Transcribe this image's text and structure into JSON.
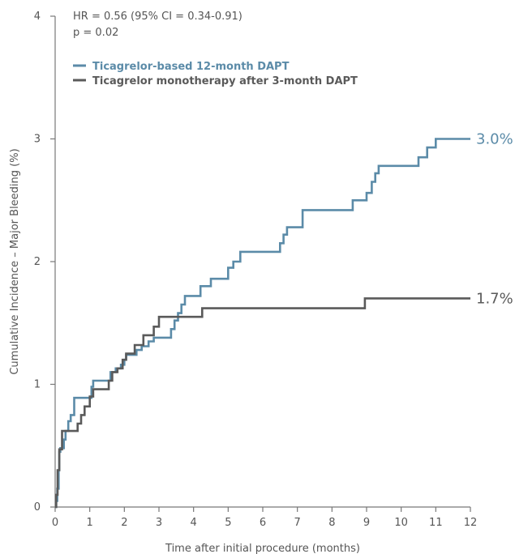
{
  "chart_data": {
    "type": "line",
    "step": true,
    "title": "",
    "xlabel": "Time after initial procedure (months)",
    "ylabel": "Cumulative Incidence – Major Bleeding (%)",
    "xlim": [
      0,
      12
    ],
    "ylim": [
      0,
      4
    ],
    "x_ticks": [
      0,
      1,
      2,
      3,
      4,
      5,
      6,
      7,
      8,
      9,
      10,
      11,
      12
    ],
    "y_ticks": [
      0,
      1,
      2,
      3,
      4
    ],
    "grid": false,
    "legend_position": "top-left",
    "annotations": {
      "hr": "HR = 0.56 (95% CI = 0.34-0.91)",
      "p": "p = 0.02"
    },
    "series": [
      {
        "name": "Ticagrelor-based 12-month DAPT",
        "color": "#5b8ba8",
        "end_label": "3.0%",
        "end_value": 3.0,
        "x": [
          0,
          0.03,
          0.06,
          0.1,
          0.12,
          0.15,
          0.25,
          0.3,
          0.38,
          0.45,
          0.55,
          0.9,
          1.05,
          1.1,
          1.6,
          1.75,
          1.9,
          2.0,
          2.05,
          2.2,
          2.35,
          2.5,
          2.7,
          2.85,
          3.2,
          3.35,
          3.45,
          3.55,
          3.65,
          3.75,
          4.2,
          4.5,
          5.0,
          5.15,
          5.35,
          6.5,
          6.6,
          6.7,
          6.9,
          7.15,
          8.6,
          9.0,
          9.15,
          9.25,
          9.35,
          10.5,
          10.75,
          11.0,
          12.0
        ],
        "y": [
          0,
          0.05,
          0.15,
          0.3,
          0.45,
          0.48,
          0.55,
          0.62,
          0.7,
          0.75,
          0.89,
          0.89,
          0.98,
          1.03,
          1.1,
          1.13,
          1.16,
          1.2,
          1.24,
          1.24,
          1.28,
          1.31,
          1.35,
          1.38,
          1.38,
          1.45,
          1.52,
          1.58,
          1.65,
          1.72,
          1.8,
          1.86,
          1.95,
          2.0,
          2.08,
          2.15,
          2.22,
          2.28,
          2.28,
          2.42,
          2.5,
          2.56,
          2.65,
          2.72,
          2.78,
          2.85,
          2.93,
          3.0,
          3.0
        ]
      },
      {
        "name": "Ticagrelor monotherapy after 3-month DAPT",
        "color": "#5a5a5a",
        "end_label": "1.7%",
        "end_value": 1.7,
        "x": [
          0,
          0.03,
          0.07,
          0.12,
          0.2,
          0.65,
          0.75,
          0.85,
          1.0,
          1.1,
          1.55,
          1.65,
          1.8,
          1.95,
          2.05,
          2.3,
          2.55,
          2.85,
          3.0,
          3.1,
          4.25,
          8.95,
          12.0
        ],
        "y": [
          0,
          0.1,
          0.3,
          0.47,
          0.62,
          0.68,
          0.75,
          0.82,
          0.9,
          0.96,
          1.03,
          1.1,
          1.13,
          1.2,
          1.25,
          1.32,
          1.4,
          1.47,
          1.55,
          1.55,
          1.62,
          1.7,
          1.7
        ]
      }
    ]
  }
}
